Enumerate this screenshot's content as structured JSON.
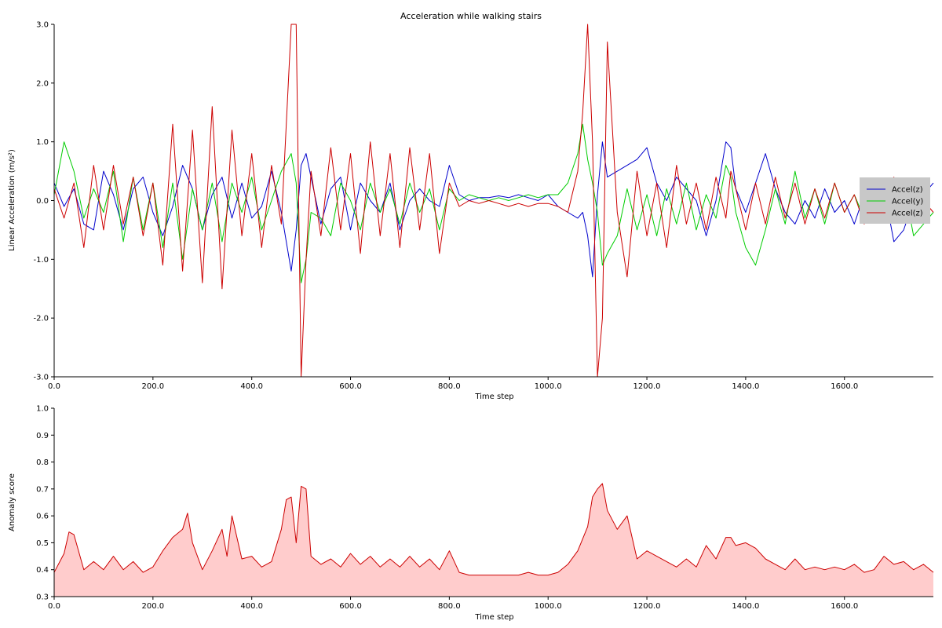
{
  "chart_data": [
    {
      "type": "line",
      "title": "Acceleration while walking stairs",
      "xlabel": "Time step",
      "ylabel": "Linear Acceleration (m/s²)",
      "xlim": [
        0,
        1780
      ],
      "ylim": [
        -3.0,
        3.0
      ],
      "x_ticks": [
        0,
        200,
        400,
        600,
        800,
        1000,
        1200,
        1400,
        1600
      ],
      "x_tick_labels": [
        "0.0",
        "200.0",
        "400.0",
        "600.0",
        "800.0",
        "1000.0",
        "1200.0",
        "1400.0",
        "1600.0"
      ],
      "y_ticks": [
        -3,
        -2,
        -1,
        0,
        1,
        2,
        3
      ],
      "y_tick_labels": [
        "-3.0",
        "-2.0",
        "-1.0",
        "0.0",
        "1.0",
        "2.0",
        "3.0"
      ],
      "grid": false,
      "legend_position": "right",
      "series": [
        {
          "name": "Accel(z)",
          "color": "#0000cc",
          "x": [
            0,
            20,
            40,
            60,
            80,
            100,
            120,
            140,
            160,
            180,
            200,
            220,
            240,
            260,
            280,
            300,
            320,
            340,
            360,
            380,
            400,
            420,
            440,
            460,
            480,
            490,
            500,
            510,
            520,
            540,
            560,
            580,
            600,
            620,
            640,
            660,
            680,
            700,
            720,
            740,
            760,
            780,
            800,
            820,
            840,
            860,
            880,
            900,
            920,
            940,
            960,
            980,
            1000,
            1020,
            1040,
            1060,
            1070,
            1080,
            1090,
            1100,
            1110,
            1120,
            1140,
            1160,
            1180,
            1200,
            1220,
            1240,
            1260,
            1280,
            1300,
            1320,
            1340,
            1360,
            1370,
            1380,
            1400,
            1420,
            1440,
            1460,
            1480,
            1500,
            1520,
            1540,
            1560,
            1580,
            1600,
            1620,
            1640,
            1660,
            1680,
            1700,
            1720,
            1740,
            1760,
            1780
          ],
          "y": [
            0.3,
            -0.1,
            0.2,
            -0.4,
            -0.5,
            0.5,
            0.1,
            -0.5,
            0.2,
            0.4,
            -0.2,
            -0.6,
            -0.1,
            0.6,
            0.2,
            -0.5,
            0.1,
            0.4,
            -0.3,
            0.3,
            -0.3,
            -0.1,
            0.5,
            -0.2,
            -1.2,
            -0.5,
            0.6,
            0.8,
            0.4,
            -0.4,
            0.2,
            0.4,
            -0.5,
            0.3,
            0.0,
            -0.2,
            0.3,
            -0.5,
            0.0,
            0.2,
            0.0,
            -0.1,
            0.6,
            0.1,
            0.0,
            0.05,
            0.05,
            0.08,
            0.05,
            0.1,
            0.05,
            0.0,
            0.1,
            -0.1,
            -0.2,
            -0.3,
            -0.2,
            -0.6,
            -1.3,
            0.1,
            1.0,
            0.4,
            0.5,
            0.6,
            0.7,
            0.9,
            0.3,
            0.0,
            0.4,
            0.2,
            0.0,
            -0.6,
            0.0,
            1.0,
            0.9,
            0.2,
            -0.2,
            0.3,
            0.8,
            0.2,
            -0.2,
            -0.4,
            0.0,
            -0.3,
            0.2,
            -0.2,
            0.0,
            -0.4,
            0.1,
            -0.3,
            0.2,
            -0.7,
            -0.5,
            0.0,
            0.1,
            0.3
          ]
        },
        {
          "name": "Accel(y)",
          "color": "#00cc00",
          "x": [
            0,
            20,
            40,
            60,
            80,
            100,
            120,
            140,
            160,
            180,
            200,
            220,
            240,
            260,
            280,
            300,
            320,
            340,
            360,
            380,
            400,
            420,
            440,
            460,
            480,
            490,
            500,
            510,
            520,
            540,
            560,
            580,
            600,
            620,
            640,
            660,
            680,
            700,
            720,
            740,
            760,
            780,
            800,
            820,
            840,
            860,
            880,
            900,
            920,
            940,
            960,
            980,
            1000,
            1020,
            1040,
            1060,
            1070,
            1080,
            1090,
            1100,
            1110,
            1120,
            1140,
            1160,
            1180,
            1200,
            1220,
            1240,
            1260,
            1280,
            1300,
            1320,
            1340,
            1360,
            1370,
            1380,
            1400,
            1420,
            1440,
            1460,
            1480,
            1500,
            1520,
            1540,
            1560,
            1580,
            1600,
            1620,
            1640,
            1660,
            1680,
            1700,
            1720,
            1740,
            1760,
            1780
          ],
          "y": [
            0.1,
            1.0,
            0.5,
            -0.3,
            0.2,
            -0.2,
            0.5,
            -0.7,
            0.4,
            -0.5,
            0.3,
            -0.8,
            0.3,
            -1.0,
            0.2,
            -0.5,
            0.3,
            -0.7,
            0.3,
            -0.2,
            0.4,
            -0.5,
            0.0,
            0.5,
            0.8,
            0.3,
            -1.4,
            -1.0,
            -0.2,
            -0.3,
            -0.6,
            0.3,
            0.0,
            -0.5,
            0.3,
            -0.2,
            0.2,
            -0.4,
            0.3,
            -0.2,
            0.2,
            -0.5,
            0.2,
            0.0,
            0.1,
            0.05,
            0.0,
            0.05,
            0.0,
            0.05,
            0.1,
            0.05,
            0.1,
            0.1,
            0.3,
            0.8,
            1.3,
            0.7,
            0.3,
            -0.2,
            -1.1,
            -0.9,
            -0.6,
            0.2,
            -0.5,
            0.1,
            -0.6,
            0.2,
            -0.4,
            0.3,
            -0.5,
            0.1,
            -0.3,
            0.6,
            0.4,
            -0.2,
            -0.8,
            -1.1,
            -0.5,
            0.2,
            -0.4,
            0.5,
            -0.3,
            0.2,
            -0.4,
            0.3,
            -0.2,
            0.1,
            -0.3,
            0.2,
            -0.1,
            0.0,
            0.3,
            -0.6,
            -0.4,
            -0.2
          ]
        },
        {
          "name": "Accel(z)",
          "color": "#cc0000",
          "x": [
            0,
            20,
            40,
            60,
            80,
            100,
            120,
            140,
            160,
            180,
            200,
            220,
            240,
            260,
            280,
            300,
            320,
            340,
            360,
            380,
            400,
            420,
            440,
            460,
            480,
            490,
            500,
            510,
            520,
            540,
            560,
            580,
            600,
            620,
            640,
            660,
            680,
            700,
            720,
            740,
            760,
            780,
            800,
            820,
            840,
            860,
            880,
            900,
            920,
            940,
            960,
            980,
            1000,
            1020,
            1040,
            1060,
            1070,
            1080,
            1090,
            1100,
            1110,
            1120,
            1140,
            1160,
            1180,
            1200,
            1220,
            1240,
            1260,
            1280,
            1300,
            1320,
            1340,
            1360,
            1370,
            1380,
            1400,
            1420,
            1440,
            1460,
            1480,
            1500,
            1520,
            1540,
            1560,
            1580,
            1600,
            1620,
            1640,
            1660,
            1680,
            1700,
            1720,
            1740,
            1760,
            1780
          ],
          "y": [
            0.2,
            -0.3,
            0.3,
            -0.8,
            0.6,
            -0.5,
            0.6,
            -0.4,
            0.4,
            -0.6,
            0.3,
            -1.1,
            1.3,
            -1.2,
            1.2,
            -1.4,
            1.6,
            -1.5,
            1.2,
            -0.6,
            0.8,
            -0.8,
            0.6,
            -0.4,
            3.0,
            3.0,
            -3.0,
            -1.0,
            0.5,
            -0.6,
            0.9,
            -0.5,
            0.8,
            -0.9,
            1.0,
            -0.6,
            0.8,
            -0.8,
            0.9,
            -0.5,
            0.8,
            -0.9,
            0.3,
            -0.1,
            0.0,
            -0.05,
            0.0,
            -0.05,
            -0.1,
            -0.05,
            -0.1,
            -0.05,
            -0.05,
            -0.1,
            -0.2,
            0.5,
            1.5,
            3.0,
            1.0,
            -3.0,
            -2.0,
            2.7,
            -0.2,
            -1.3,
            0.5,
            -0.6,
            0.3,
            -0.8,
            0.6,
            -0.4,
            0.3,
            -0.5,
            0.4,
            -0.3,
            0.5,
            0.2,
            -0.5,
            0.3,
            -0.4,
            0.4,
            -0.3,
            0.3,
            -0.4,
            0.2,
            -0.3,
            0.3,
            -0.2,
            0.1,
            -0.4,
            0.3,
            -0.3,
            0.4,
            -0.2,
            0.3,
            0.0,
            -0.2
          ]
        }
      ]
    },
    {
      "type": "area",
      "title": "",
      "xlabel": "Time step",
      "ylabel": "Anomaly score",
      "xlim": [
        0,
        1780
      ],
      "ylim": [
        0.3,
        1.0
      ],
      "x_ticks": [
        0,
        200,
        400,
        600,
        800,
        1000,
        1200,
        1400,
        1600
      ],
      "x_tick_labels": [
        "0.0",
        "200.0",
        "400.0",
        "600.0",
        "800.0",
        "1000.0",
        "1200.0",
        "1400.0",
        "1600.0"
      ],
      "y_ticks": [
        0.3,
        0.4,
        0.5,
        0.6,
        0.7,
        0.8,
        0.9,
        1.0
      ],
      "y_tick_labels": [
        "0.3",
        "0.4",
        "0.5",
        "0.6",
        "0.7",
        "0.8",
        "0.9",
        "1.0"
      ],
      "grid": false,
      "line_color": "#cc0000",
      "fill_color": "#ffcccc",
      "x": [
        0,
        20,
        30,
        40,
        60,
        80,
        100,
        120,
        140,
        160,
        180,
        200,
        220,
        240,
        260,
        270,
        280,
        300,
        320,
        340,
        350,
        360,
        380,
        400,
        420,
        440,
        460,
        470,
        480,
        490,
        500,
        510,
        520,
        540,
        560,
        580,
        600,
        620,
        640,
        660,
        680,
        700,
        720,
        740,
        760,
        780,
        800,
        820,
        840,
        860,
        880,
        900,
        920,
        940,
        960,
        980,
        1000,
        1020,
        1040,
        1060,
        1080,
        1090,
        1100,
        1110,
        1120,
        1140,
        1160,
        1180,
        1200,
        1220,
        1240,
        1260,
        1280,
        1300,
        1320,
        1340,
        1360,
        1370,
        1380,
        1400,
        1420,
        1440,
        1460,
        1480,
        1500,
        1520,
        1540,
        1560,
        1580,
        1600,
        1620,
        1640,
        1660,
        1680,
        1700,
        1720,
        1740,
        1760,
        1780
      ],
      "y": [
        0.39,
        0.46,
        0.54,
        0.53,
        0.4,
        0.43,
        0.4,
        0.45,
        0.4,
        0.43,
        0.39,
        0.41,
        0.47,
        0.52,
        0.55,
        0.61,
        0.5,
        0.4,
        0.47,
        0.55,
        0.45,
        0.6,
        0.44,
        0.45,
        0.41,
        0.43,
        0.55,
        0.66,
        0.67,
        0.5,
        0.71,
        0.7,
        0.45,
        0.42,
        0.44,
        0.41,
        0.46,
        0.42,
        0.45,
        0.41,
        0.44,
        0.41,
        0.45,
        0.41,
        0.44,
        0.4,
        0.47,
        0.39,
        0.38,
        0.38,
        0.38,
        0.38,
        0.38,
        0.38,
        0.39,
        0.38,
        0.38,
        0.39,
        0.42,
        0.47,
        0.56,
        0.67,
        0.7,
        0.72,
        0.62,
        0.55,
        0.6,
        0.44,
        0.47,
        0.45,
        0.43,
        0.41,
        0.44,
        0.41,
        0.49,
        0.44,
        0.52,
        0.52,
        0.49,
        0.5,
        0.48,
        0.44,
        0.42,
        0.4,
        0.44,
        0.4,
        0.41,
        0.4,
        0.41,
        0.4,
        0.42,
        0.39,
        0.4,
        0.45,
        0.42,
        0.43,
        0.4,
        0.42,
        0.39
      ]
    }
  ]
}
